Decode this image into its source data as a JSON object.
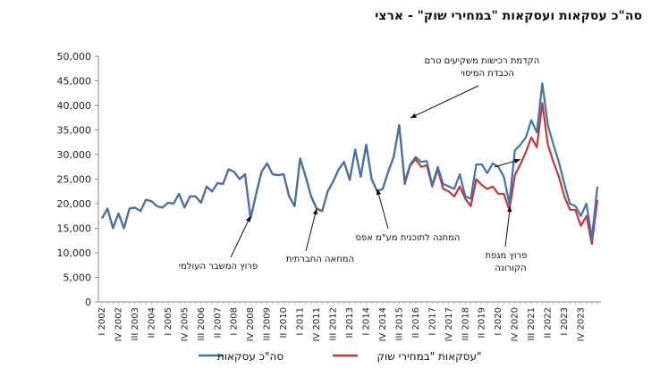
{
  "chart_data": {
    "type": "line",
    "title": "סה\"כ עסקאות ועסקאות \"במחירי שוק\" - ארצי",
    "ylim": [
      0,
      50000
    ],
    "yticks": [
      "0",
      "5,000",
      "10,000",
      "15,000",
      "20,000",
      "25,000",
      "30,000",
      "35,000",
      "40,000",
      "45,000",
      "50,000"
    ],
    "xlabels": [
      "I 2002",
      "IV 2002",
      "III 2003",
      "II 2004",
      "I 2005",
      "IV 2005",
      "III 2006",
      "II 2007",
      "I 2008",
      "IV 2008",
      "III 2009",
      "II 2010",
      "I 2011",
      "IV 2011",
      "III 2012",
      "II 2013",
      "I 2014",
      "IV 2014",
      "III 2015",
      "II 2016",
      "I 2017",
      "IV 2017",
      "III 2018",
      "II 2019",
      "I 2020",
      "IV 2020",
      "III 2021",
      "II 2022",
      "I 2023",
      "IV 2023"
    ],
    "grid": false,
    "legend_position": "bottom",
    "series": [
      {
        "name": "סה\"כ עסקאות",
        "color": "#4472A8",
        "values": [
          17000,
          19000,
          15000,
          18000,
          15000,
          19000,
          19200,
          18500,
          20800,
          20500,
          19500,
          19200,
          20200,
          20000,
          22000,
          19200,
          21500,
          21500,
          20200,
          23500,
          22500,
          24200,
          24000,
          27000,
          26500,
          25000,
          26000,
          17000,
          22000,
          26500,
          28200,
          26000,
          25800,
          26000,
          21500,
          19500,
          29200,
          25500,
          21500,
          19000,
          18500,
          22500,
          24500,
          27000,
          28500,
          24800,
          31000,
          25500,
          32000,
          25000,
          22500,
          23000,
          26500,
          29500,
          36000,
          24500,
          28000,
          29500,
          28500,
          28700,
          23800,
          27500,
          24000,
          23500,
          23000,
          26000,
          21500,
          21000,
          28000,
          28000,
          26200,
          28200,
          27500,
          25500,
          20000,
          30800,
          32000,
          33500,
          37000,
          34500,
          44500,
          36000,
          32000,
          28500,
          24000,
          20000,
          19500,
          17500,
          20000,
          13000,
          23500
        ],
        "valuesNote": "quarterly, I 2002 - II 2024"
      },
      {
        "name": "עסקאות \"במחירי שוק\"",
        "color": "#C0393B",
        "values": [
          17000,
          19000,
          15000,
          18000,
          15000,
          19000,
          19200,
          18500,
          20800,
          20500,
          19500,
          19200,
          20200,
          20000,
          22000,
          19200,
          21500,
          21500,
          20200,
          23500,
          22500,
          24200,
          24000,
          27000,
          26500,
          25000,
          26000,
          17000,
          22000,
          26500,
          28200,
          26000,
          25800,
          26000,
          21500,
          19500,
          29200,
          25500,
          21500,
          19000,
          18500,
          22500,
          24500,
          27000,
          28500,
          24800,
          31000,
          25500,
          32000,
          25000,
          22500,
          23000,
          26500,
          29500,
          36000,
          24000,
          27800,
          29000,
          27500,
          27800,
          23500,
          27000,
          23000,
          22500,
          21500,
          23500,
          21000,
          19500,
          25000,
          23800,
          23000,
          23500,
          22000,
          22000,
          18700,
          25800,
          28000,
          30500,
          33500,
          31500,
          40500,
          32000,
          28500,
          25500,
          21500,
          18800,
          18700,
          15500,
          17500,
          11800,
          20800
        ]
      }
    ]
  },
  "annotations": {
    "crisis": "פרוץ המשבר העולמי",
    "protest": "המחאה החברתית",
    "zero_vat": "המתנה לתוכנית מע\"מ אפס",
    "investors": "הקדמת רכישות משקיעים טרם הכבדת המיסוי",
    "corona": "פרוץ מגפת הקורונה"
  }
}
